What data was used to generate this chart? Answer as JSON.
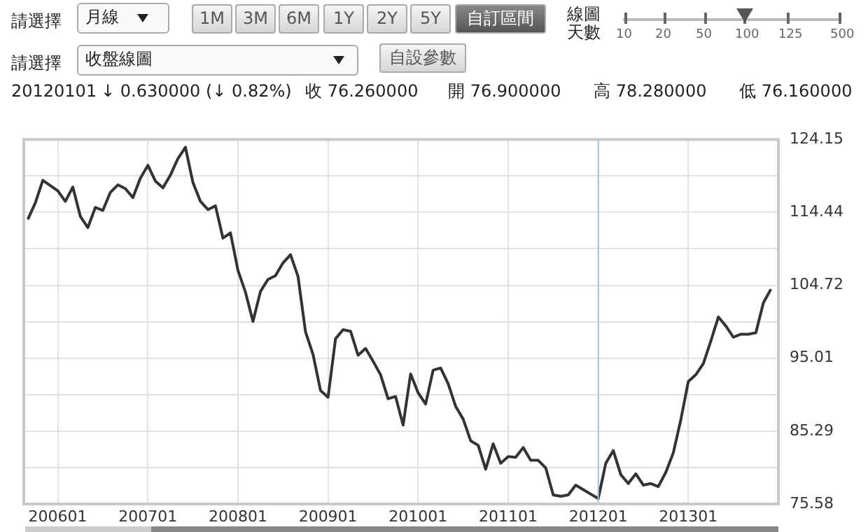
{
  "chart_data": {
    "type": "line",
    "x": [
      "2005-09",
      "2005-10",
      "2005-11",
      "2005-12",
      "2006-01",
      "2006-02",
      "2006-03",
      "2006-04",
      "2006-05",
      "2006-06",
      "2006-07",
      "2006-08",
      "2006-09",
      "2006-10",
      "2006-11",
      "2006-12",
      "2007-01",
      "2007-02",
      "2007-03",
      "2007-04",
      "2007-05",
      "2007-06",
      "2007-07",
      "2007-08",
      "2007-09",
      "2007-10",
      "2007-11",
      "2007-12",
      "2008-01",
      "2008-02",
      "2008-03",
      "2008-04",
      "2008-05",
      "2008-06",
      "2008-07",
      "2008-08",
      "2008-09",
      "2008-10",
      "2008-11",
      "2008-12",
      "2009-01",
      "2009-02",
      "2009-03",
      "2009-04",
      "2009-05",
      "2009-06",
      "2009-07",
      "2009-08",
      "2009-09",
      "2009-10",
      "2009-11",
      "2009-12",
      "2010-01",
      "2010-02",
      "2010-03",
      "2010-04",
      "2010-05",
      "2010-06",
      "2010-07",
      "2010-08",
      "2010-09",
      "2010-10",
      "2010-11",
      "2010-12",
      "2011-01",
      "2011-02",
      "2011-03",
      "2011-04",
      "2011-05",
      "2011-06",
      "2011-07",
      "2011-08",
      "2011-09",
      "2011-10",
      "2011-11",
      "2011-12",
      "2012-01",
      "2012-02",
      "2012-03",
      "2012-04",
      "2012-05",
      "2012-06",
      "2012-07",
      "2012-08",
      "2012-09",
      "2012-10",
      "2012-11",
      "2012-12",
      "2013-01",
      "2013-02",
      "2013-03",
      "2013-04",
      "2013-05",
      "2013-06",
      "2013-07",
      "2013-08",
      "2013-09",
      "2013-10",
      "2013-11",
      "2013-12"
    ],
    "series": [
      {
        "color": "#333333",
        "values": [
          113.5,
          115.7,
          118.7,
          118.0,
          117.3,
          115.9,
          117.8,
          113.9,
          112.4,
          115.1,
          114.7,
          117.1,
          118.1,
          117.6,
          116.4,
          119.0,
          120.7,
          118.6,
          117.7,
          119.4,
          121.6,
          123.1,
          118.4,
          115.9,
          114.8,
          115.3,
          111.0,
          111.7,
          106.7,
          103.8,
          99.9,
          103.9,
          105.5,
          106.0,
          107.7,
          108.8,
          105.9,
          98.5,
          95.5,
          90.7,
          89.8,
          97.6,
          98.8,
          98.6,
          95.4,
          96.3,
          94.6,
          92.8,
          89.6,
          89.9,
          86.1,
          92.9,
          90.4,
          88.9,
          93.4,
          93.7,
          91.6,
          88.6,
          86.9,
          84.0,
          83.4,
          80.2,
          83.6,
          81.0,
          81.9,
          81.8,
          83.1,
          81.4,
          81.4,
          80.4,
          76.8,
          76.6,
          76.8,
          78.1,
          77.5,
          76.9,
          76.3,
          81.0,
          82.7,
          79.5,
          78.3,
          79.6,
          78.1,
          78.3,
          77.9,
          79.8,
          82.4,
          86.8,
          91.9,
          92.8,
          94.3,
          97.3,
          100.5,
          99.3,
          97.8,
          98.2,
          98.2,
          98.4,
          102.4,
          104.2
        ]
      }
    ],
    "xlim": [
      "2005-08-15",
      "2014-01-01"
    ],
    "xticks": [
      {
        "value": "2006-01",
        "label": "200601"
      },
      {
        "value": "2007-01",
        "label": "200701"
      },
      {
        "value": "2008-01",
        "label": "200801"
      },
      {
        "value": "2009-01",
        "label": "200901"
      },
      {
        "value": "2010-01",
        "label": "201001"
      },
      {
        "value": "2011-01",
        "label": "201101"
      },
      {
        "value": "2012-01",
        "label": "201201"
      },
      {
        "value": "2013-01",
        "label": "201301"
      }
    ],
    "ylim": [
      75.58,
      124.15
    ],
    "yticks": [
      75.58,
      {
        "value": 80.44,
        "label": null
      },
      85.29,
      {
        "value": 90.15,
        "label": null
      },
      95.01,
      {
        "value": 99.87,
        "label": null
      },
      104.72,
      {
        "value": 109.58,
        "label": null
      },
      114.44,
      {
        "value": 119.3,
        "label": null
      },
      124.15
    ],
    "ref_lines": [
      {
        "axis": "x",
        "value": "2012-01",
        "color": "#9ccbd8"
      }
    ],
    "grid": true,
    "legend": false,
    "marker": "none",
    "line_style": "solid",
    "annotations": [
      "請選擇",
      "月線",
      "1M",
      "3M",
      "6M",
      "1Y",
      "2Y",
      "5Y",
      "自訂區間",
      "線圖",
      "天數",
      "10",
      "20",
      "50",
      "100",
      "125",
      "500",
      "請選擇",
      "收盤線圖",
      "自設參數",
      "20120101",
      "↓ 0.630000 (↓ 0.82%)",
      "收 76.260000",
      "開 76.900000",
      "高 78.280000",
      "低 76.160000"
    ]
  }
}
